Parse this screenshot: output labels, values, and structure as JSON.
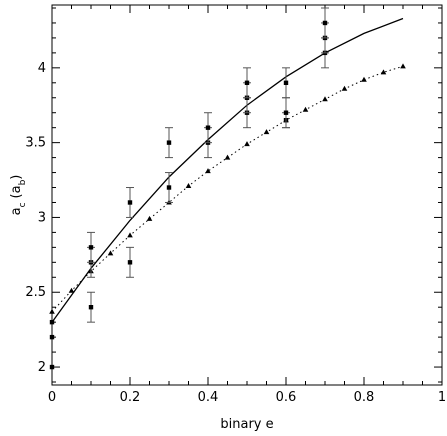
{
  "chart_data": {
    "type": "scatter",
    "title": "",
    "xlabel": "binary e",
    "ylabel": {
      "base": "a",
      "base_sub": "c",
      "paren_open": "(a",
      "paren_sub": "b",
      "paren_close": ")"
    },
    "xlim": [
      0,
      1
    ],
    "ylim": [
      1.88,
      4.42
    ],
    "xticks": [
      0,
      0.2,
      0.4,
      0.6,
      0.8,
      1
    ],
    "xtick_labels": [
      "0",
      "0.2",
      "0.4",
      "0.6",
      "0.8",
      "1"
    ],
    "yticks": [
      2,
      2.5,
      3,
      3.5,
      4
    ],
    "ytick_labels": [
      "2",
      "2.5",
      "3",
      "3.5",
      "4"
    ],
    "grid": false,
    "legend": "none",
    "series": [
      {
        "style": "square markers with error bars",
        "points": [
          {
            "x": 0,
            "y": 2.0
          },
          {
            "x": 0,
            "y": 2.2
          },
          {
            "x": 0,
            "y": 2.3
          },
          {
            "x": 0.1,
            "y": 2.4,
            "err": 0.1
          },
          {
            "x": 0.1,
            "y": 2.7,
            "err": 0.1
          },
          {
            "x": 0.1,
            "y": 2.8,
            "err": 0.1
          },
          {
            "x": 0.2,
            "y": 2.7,
            "err": 0.1
          },
          {
            "x": 0.2,
            "y": 3.1,
            "err": 0.1
          },
          {
            "x": 0.3,
            "y": 3.2,
            "err": 0.1
          },
          {
            "x": 0.3,
            "y": 3.5,
            "err": 0.1
          },
          {
            "x": 0.4,
            "y": 3.5,
            "err": 0.1
          },
          {
            "x": 0.4,
            "y": 3.6,
            "err": 0.1
          },
          {
            "x": 0.5,
            "y": 3.7,
            "err": 0.1
          },
          {
            "x": 0.5,
            "y": 3.8,
            "err": 0.1
          },
          {
            "x": 0.5,
            "y": 3.9,
            "err": 0.1
          },
          {
            "x": 0.6,
            "y": 3.65,
            "err": 0.05
          },
          {
            "x": 0.6,
            "y": 3.7,
            "err": 0.1
          },
          {
            "x": 0.6,
            "y": 3.9,
            "err": 0.1
          },
          {
            "x": 0.7,
            "y": 4.1,
            "err": 0.1
          },
          {
            "x": 0.7,
            "y": 4.2,
            "err": 0.1
          },
          {
            "x": 0.7,
            "y": 4.3,
            "err": 0.1
          }
        ]
      },
      {
        "style": "solid curve",
        "x": [
          0,
          0.1,
          0.2,
          0.3,
          0.4,
          0.5,
          0.6,
          0.7,
          0.8,
          0.9
        ],
        "y": [
          2.3,
          2.66,
          2.98,
          3.27,
          3.52,
          3.75,
          3.94,
          4.1,
          4.23,
          4.33
        ]
      },
      {
        "style": "dotted curve with triangle markers",
        "x": [
          0,
          0.05,
          0.1,
          0.15,
          0.2,
          0.25,
          0.3,
          0.35,
          0.4,
          0.45,
          0.5,
          0.55,
          0.6,
          0.65,
          0.7,
          0.75,
          0.8,
          0.85,
          0.9
        ],
        "y": [
          2.37,
          2.51,
          2.64,
          2.76,
          2.88,
          2.99,
          3.1,
          3.21,
          3.31,
          3.4,
          3.49,
          3.57,
          3.65,
          3.72,
          3.79,
          3.86,
          3.92,
          3.97,
          4.01
        ]
      }
    ]
  }
}
